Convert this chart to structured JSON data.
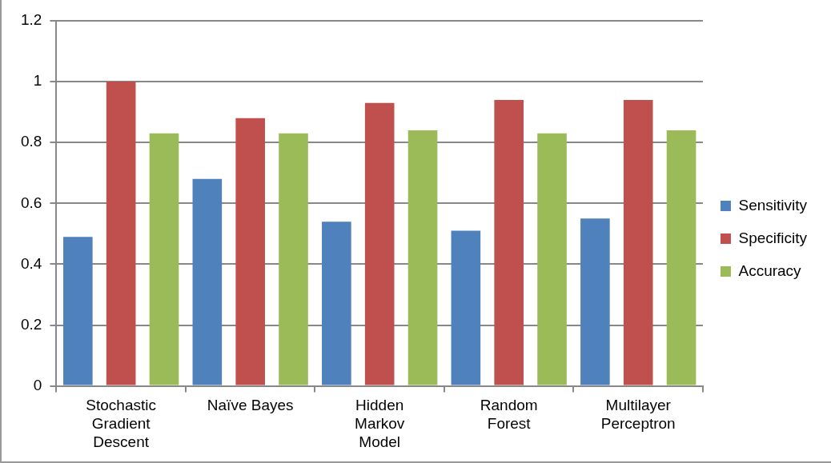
{
  "chart_data": {
    "type": "bar",
    "categories": [
      "Stochastic Gradient Descent",
      "Naïve Bayes",
      "Hidden Markov Model",
      "Random Forest",
      "Multilayer Perceptron"
    ],
    "series": [
      {
        "name": "Sensitivity",
        "color": "#4f81bd",
        "values": [
          0.49,
          0.68,
          0.54,
          0.51,
          0.55
        ]
      },
      {
        "name": "Specificity",
        "color": "#c0504d",
        "values": [
          1.0,
          0.88,
          0.93,
          0.94,
          0.94
        ]
      },
      {
        "name": "Accuracy",
        "color": "#9bbb59",
        "values": [
          0.83,
          0.83,
          0.84,
          0.83,
          0.84
        ]
      }
    ],
    "ylim": [
      0,
      1.2
    ],
    "yticks": [
      0,
      0.2,
      0.4,
      0.6,
      0.8,
      1,
      1.2
    ],
    "grid": "y",
    "legend": "right"
  }
}
